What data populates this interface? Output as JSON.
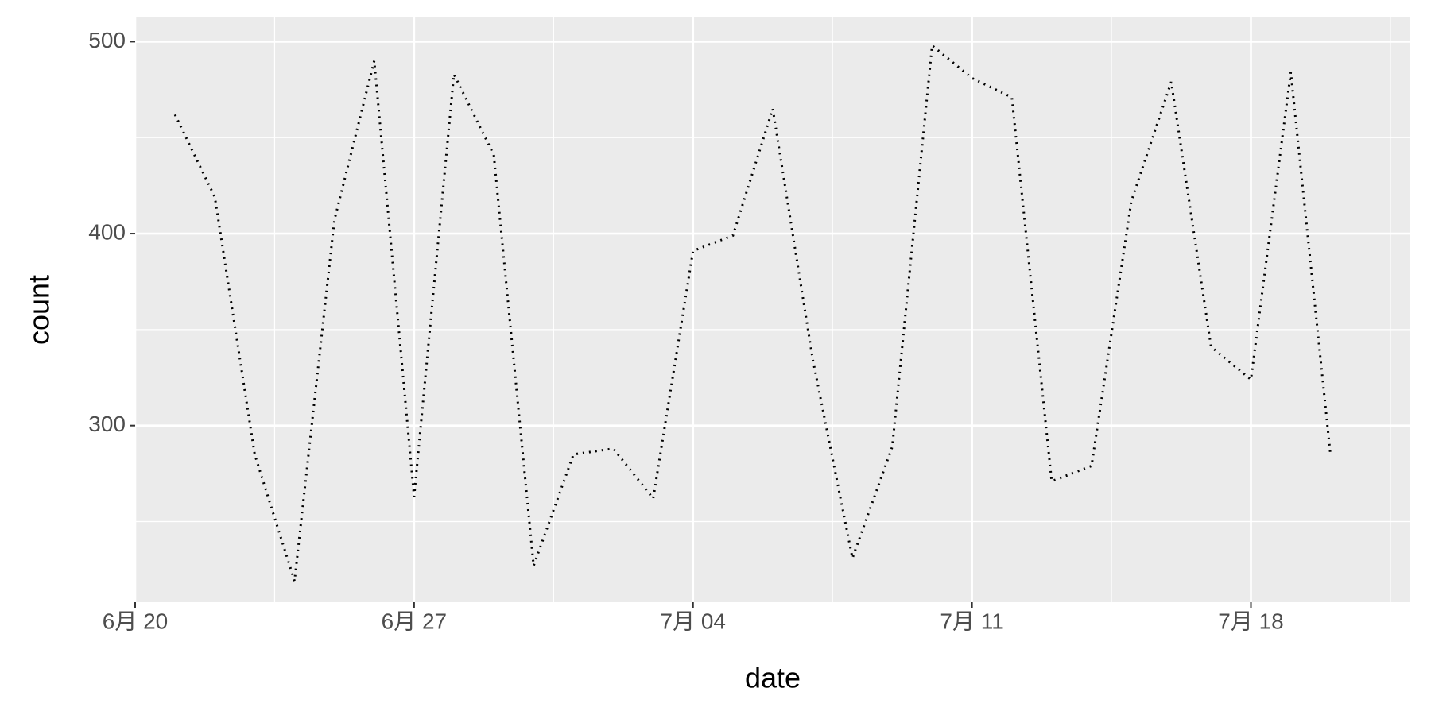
{
  "chart_data": {
    "type": "line",
    "x_label": "date",
    "y_label": "count",
    "x": [
      "06-21",
      "06-22",
      "06-23",
      "06-24",
      "06-25",
      "06-26",
      "06-27",
      "06-28",
      "06-29",
      "06-30",
      "07-01",
      "07-02",
      "07-03",
      "07-04",
      "07-05",
      "07-06",
      "07-07",
      "07-08",
      "07-09",
      "07-10",
      "07-11",
      "07-12",
      "07-13",
      "07-14",
      "07-15",
      "07-16",
      "07-17",
      "07-18",
      "07-19",
      "07-20"
    ],
    "values": [
      462,
      419,
      285,
      219,
      407,
      490,
      263,
      483,
      441,
      227,
      285,
      288,
      262,
      391,
      399,
      465,
      335,
      231,
      289,
      498,
      481,
      471,
      271,
      279,
      417,
      479,
      341,
      324,
      484,
      284
    ],
    "color": "#000000",
    "line_style": "dotted",
    "xlim": [
      "06-20",
      "07-22"
    ],
    "xticks": [
      {
        "value": "06-20",
        "label": "6月 20"
      },
      {
        "value": "06-27",
        "label": "6月 27"
      },
      {
        "value": "07-04",
        "label": "7月 04"
      },
      {
        "value": "07-11",
        "label": "7月 11"
      },
      {
        "value": "07-18",
        "label": "7月 18"
      }
    ],
    "ylim": [
      208,
      513
    ],
    "yticks": [
      300,
      400,
      500
    ],
    "grid": true
  }
}
